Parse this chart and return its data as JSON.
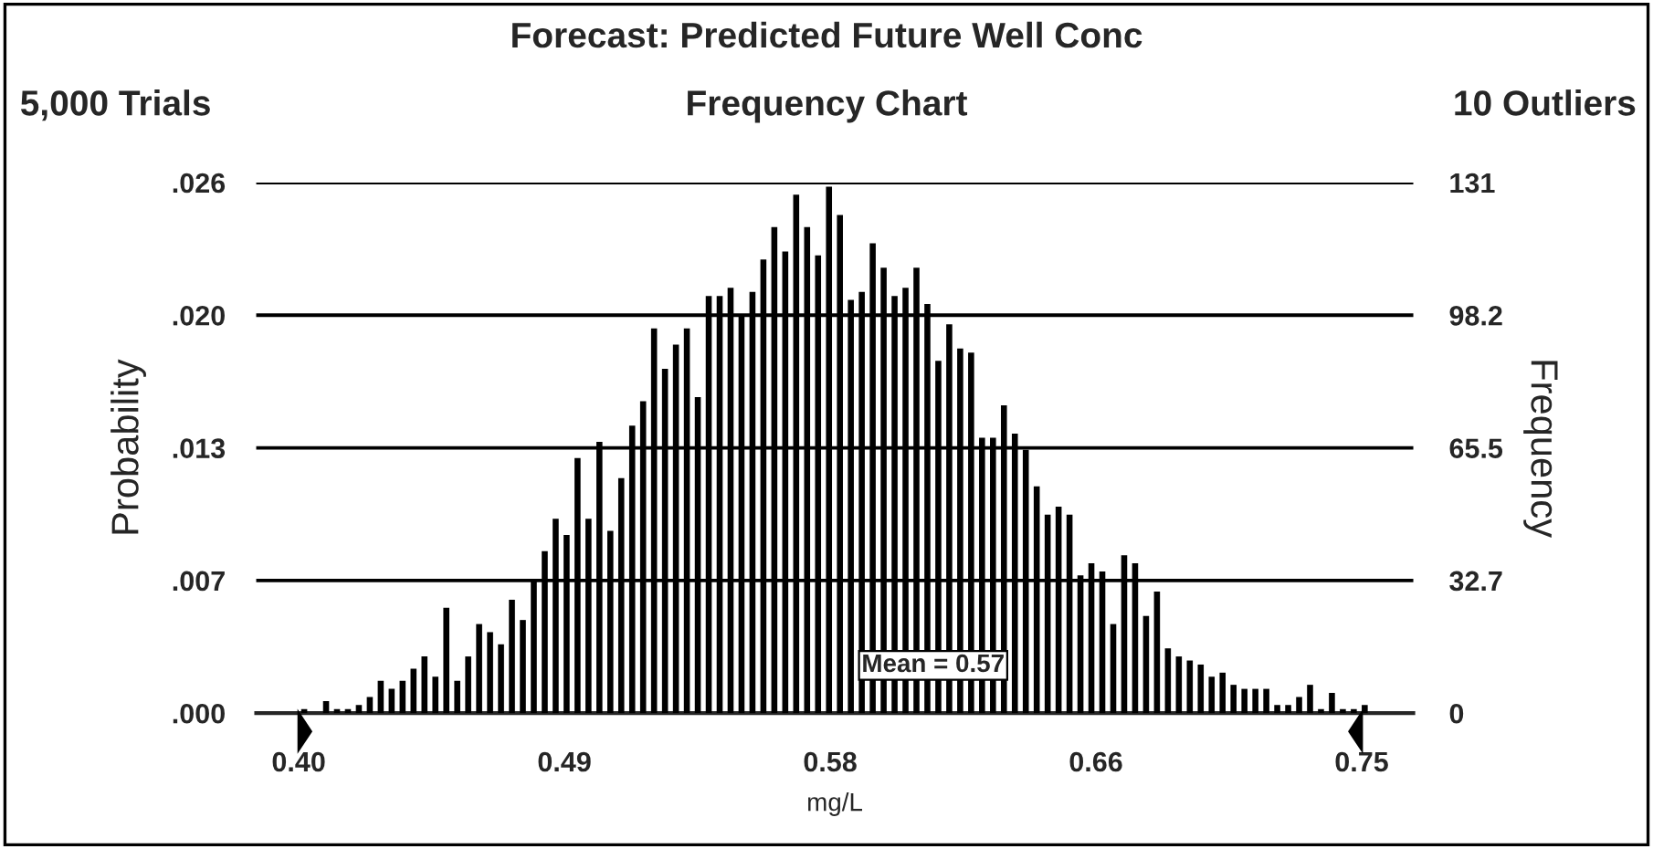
{
  "chart_data": {
    "type": "histogram",
    "title": "Forecast: Predicted Future Well Conc",
    "subtitle": "Frequency Chart",
    "xlabel": "mg/L",
    "ylabel": "Probability",
    "y2label": "Frequency",
    "annotations": [
      "5,000 Trials",
      "10 Outliers",
      "Mean = 0.57"
    ],
    "bins": [
      0.4,
      0.4036,
      0.4072,
      0.4108,
      0.4144,
      0.418,
      0.4216,
      0.4252,
      0.4288,
      0.4324,
      0.436,
      0.4396,
      0.4432,
      0.4468,
      0.4504,
      0.454,
      0.4576,
      0.4612,
      0.4648,
      0.4684,
      0.472,
      0.4756,
      0.4792,
      0.4828,
      0.4864,
      0.49,
      0.4936,
      0.4972,
      0.5008,
      0.5044,
      0.508,
      0.5116,
      0.5152,
      0.5188,
      0.5224,
      0.526,
      0.5296,
      0.5332,
      0.5368,
      0.5404,
      0.544,
      0.5476,
      0.5512,
      0.5548,
      0.5584,
      0.562,
      0.5656,
      0.5692,
      0.5728,
      0.5764,
      0.58,
      0.5836,
      0.5872,
      0.5908,
      0.5944,
      0.598,
      0.6016,
      0.6052,
      0.6088,
      0.6124,
      0.616,
      0.6196,
      0.6232,
      0.6268,
      0.6304,
      0.634,
      0.6376,
      0.6412,
      0.6448,
      0.6484,
      0.652,
      0.6556,
      0.6592,
      0.6628,
      0.6664,
      0.67,
      0.6736,
      0.6772,
      0.6808,
      0.6844,
      0.688,
      0.6916,
      0.6952,
      0.6988,
      0.7024,
      0.706,
      0.7096,
      0.7132,
      0.7168,
      0.7204,
      0.724,
      0.7276,
      0.7312,
      0.7348,
      0.7384,
      0.742,
      0.7456,
      0.7492,
      0.7528
    ],
    "series": [
      {
        "color": "#000000",
        "axis": "y2",
        "values": [
          1,
          0,
          3,
          1,
          1,
          2,
          4,
          8,
          6,
          8,
          11,
          14,
          9,
          26,
          8,
          14,
          22,
          20,
          17,
          28,
          23,
          33,
          40,
          48,
          44,
          63,
          48,
          67,
          45,
          58,
          71,
          77,
          95,
          85,
          91,
          95,
          78,
          103,
          103,
          105,
          98,
          104,
          112,
          120,
          114,
          128,
          120,
          113,
          130,
          123,
          102,
          104,
          116,
          110,
          103,
          105,
          110,
          101,
          87,
          96,
          90,
          89,
          68,
          68,
          76,
          69,
          65,
          56,
          49,
          51,
          49,
          34,
          37,
          35,
          22,
          39,
          37,
          24,
          30,
          16,
          14,
          13,
          12,
          9,
          10,
          7,
          6,
          6,
          6,
          2,
          2,
          4,
          7,
          1,
          5,
          1,
          1,
          2
        ]
      }
    ],
    "xlim": [
      0.386,
      0.767
    ],
    "xticks": [
      {
        "value": 0.4,
        "label": "0.40"
      },
      {
        "value": 0.4875,
        "label": "0.49"
      },
      {
        "value": 0.575,
        "label": "0.58"
      },
      {
        "value": 0.6625,
        "label": "0.66"
      },
      {
        "value": 0.75,
        "label": "0.75"
      }
    ],
    "ylim": [
      0,
      0.0262
    ],
    "yticks": [
      {
        "value": 0,
        "label": ".000"
      },
      {
        "value": 0.00655,
        "label": ".007"
      },
      {
        "value": 0.0131,
        "label": ".013"
      },
      {
        "value": 0.01965,
        "label": ".020"
      },
      {
        "value": 0.0262,
        "label": ".026"
      }
    ],
    "y2lim": [
      0,
      131
    ],
    "y2ticks": [
      {
        "value": 0,
        "label": "0"
      },
      {
        "value": 32.75,
        "label": "32.7"
      },
      65.5,
      {
        "value": 98.25,
        "label": "98.2"
      },
      131
    ],
    "grid": "y",
    "legend": false
  }
}
